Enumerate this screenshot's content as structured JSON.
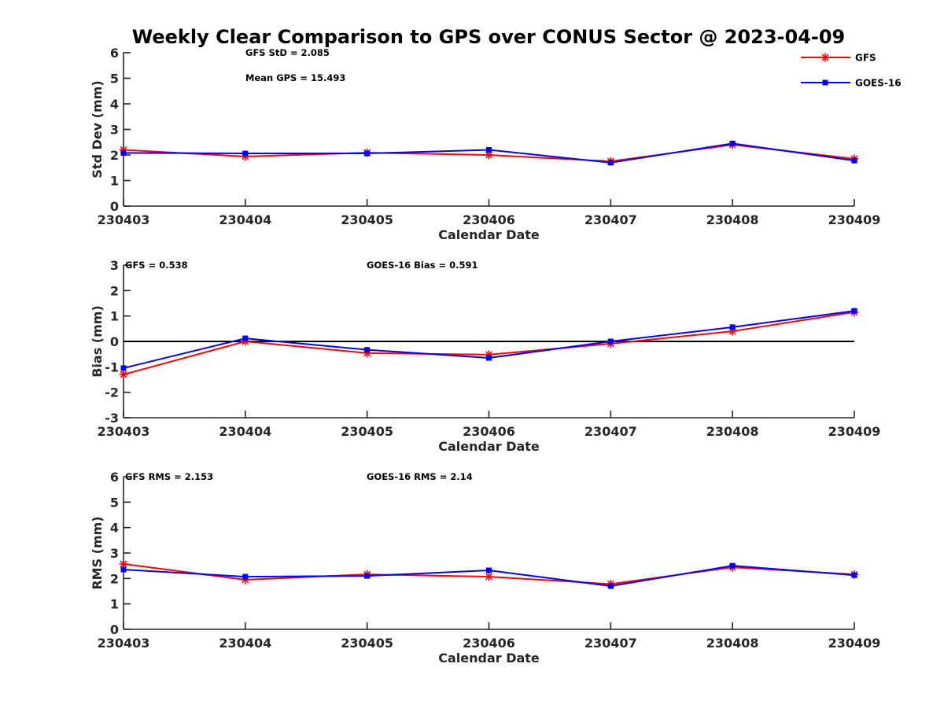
{
  "chart_data": {
    "type": "line",
    "title": "Weekly Clear Comparison to GPS over CONUS Sector @ 2023-04-09",
    "legend": {
      "placement": "top-right",
      "entries": [
        {
          "name": "GFS",
          "color": "#ff0000",
          "marker": "asterisk"
        },
        {
          "name": "GOES-16",
          "color": "#0000ff",
          "marker": "square"
        }
      ]
    },
    "panels": [
      {
        "id": "stddev",
        "ylabel": "Std Dev (mm)",
        "xlabel": "Calendar Date",
        "ylim": [
          0,
          6
        ],
        "yticks": [
          "0",
          "1",
          "2",
          "3",
          "4",
          "5",
          "6"
        ],
        "categories": [
          "230403",
          "230404",
          "230405",
          "230406",
          "230407",
          "230408",
          "230409"
        ],
        "zero_line": false,
        "annotations": [
          "GFS StD = 2.085",
          "Mean GPS = 15.493"
        ],
        "series": [
          {
            "name": "GFS",
            "values": [
              2.2,
              1.94,
              2.09,
              2.0,
              1.75,
              2.4,
              1.85
            ]
          },
          {
            "name": "GOES-16",
            "values": [
              2.08,
              2.06,
              2.06,
              2.2,
              1.7,
              2.45,
              1.78
            ]
          }
        ]
      },
      {
        "id": "bias",
        "ylabel": "Bias (mm)",
        "xlabel": "Calendar Date",
        "ylim": [
          -3,
          3
        ],
        "yticks": [
          "-3",
          "-2",
          "-1",
          "0",
          "1",
          "2",
          "3"
        ],
        "categories": [
          "230403",
          "230404",
          "230405",
          "230406",
          "230407",
          "230408",
          "230409"
        ],
        "zero_line": true,
        "annotations": [
          "GFS = 0.538",
          "GOES-16 Bias  = 0.591"
        ],
        "series": [
          {
            "name": "GFS",
            "values": [
              -1.3,
              0.0,
              -0.46,
              -0.52,
              -0.09,
              0.4,
              1.15
            ]
          },
          {
            "name": "GOES-16",
            "values": [
              -1.05,
              0.12,
              -0.33,
              -0.65,
              0.0,
              0.56,
              1.2
            ]
          }
        ]
      },
      {
        "id": "rms",
        "ylabel": "RMS (mm)",
        "xlabel": "Calendar Date",
        "ylim": [
          0,
          6
        ],
        "yticks": [
          "0",
          "1",
          "2",
          "3",
          "4",
          "5",
          "6"
        ],
        "categories": [
          "230403",
          "230404",
          "230405",
          "230406",
          "230407",
          "230408",
          "230409"
        ],
        "zero_line": false,
        "annotations": [
          "GFS RMS = 2.153",
          "GOES-16 RMS = 2.14"
        ],
        "series": [
          {
            "name": "GFS",
            "values": [
              2.57,
              1.95,
              2.16,
              2.07,
              1.78,
              2.44,
              2.16
            ]
          },
          {
            "name": "GOES-16",
            "values": [
              2.35,
              2.07,
              2.1,
              2.32,
              1.7,
              2.5,
              2.13
            ]
          }
        ]
      }
    ]
  }
}
